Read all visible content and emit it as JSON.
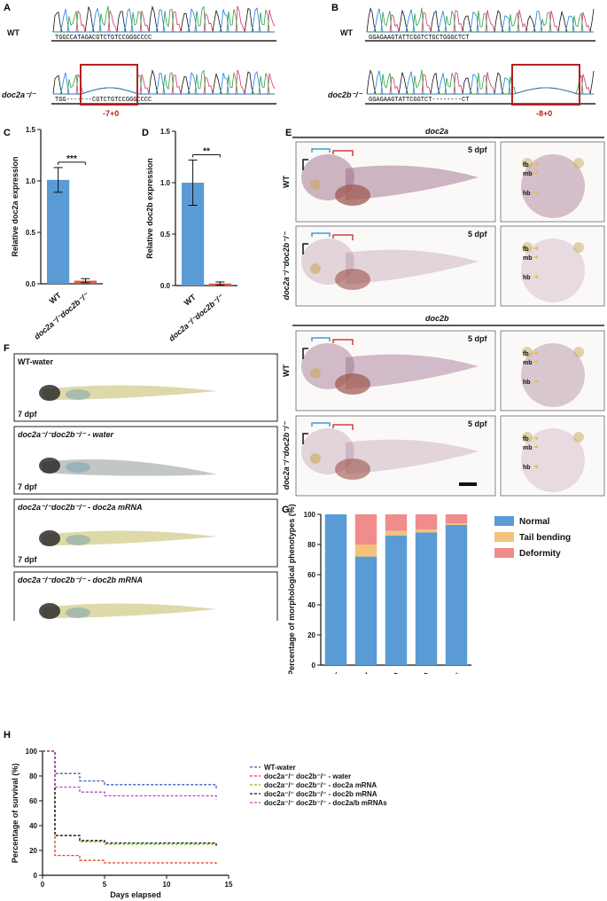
{
  "colors": {
    "bar_blue": "#5b9bd5",
    "bar_red": "#e05a3b",
    "tail": "#f4c27a",
    "deform": "#f08c8c",
    "dark_red": "#b22222"
  },
  "A": {
    "label": "A",
    "wt": "WT",
    "mut": "doc2a⁻/⁻",
    "wt_seq": "TGGCCATAGACGTCTGTCCGGGCCCC",
    "mut_seq": "TGG-------CGTCTGTCCGGGCCCC",
    "indel": "-7+0"
  },
  "B": {
    "label": "B",
    "wt": "WT",
    "mut": "doc2b⁻/⁻",
    "wt_seq": "GGAGAAGTATTCGGTCTGCTGGGCTCT",
    "mut_seq": "GGAGAAGTATTCGGTCT--------CT",
    "indel": "-8+0"
  },
  "C": {
    "label": "C",
    "sig": "***"
  },
  "D": {
    "label": "D",
    "sig": "**"
  },
  "E": {
    "label": "E",
    "gene1": "doc2a",
    "gene2": "doc2b",
    "age": "5 dpf",
    "wt": "WT",
    "mut": "doc2a⁻/⁻doc2b⁻/⁻",
    "fb": "fb",
    "mb": "mb",
    "hb": "hb"
  },
  "F": {
    "label": "F",
    "age": "7 dpf",
    "rows": [
      "WT-water",
      "doc2a⁻/⁻doc2b⁻/⁻ - water",
      "doc2a⁻/⁻doc2b⁻/⁻ - doc2a mRNA",
      "doc2a⁻/⁻doc2b⁻/⁻ - doc2b mRNA",
      "doc2a⁻/⁻doc2b⁻/⁻ - doc2a/b mRNA"
    ]
  },
  "G": {
    "label": "G"
  },
  "H": {
    "label": "H"
  },
  "chart_data": [
    {
      "panel": "C",
      "type": "bar",
      "categories": [
        "WT",
        "doc2a⁻/⁻doc2b⁻/⁻"
      ],
      "values": [
        1.01,
        0.03
      ],
      "errors": [
        0.12,
        0.02
      ],
      "ylabel": "Relative doc2a expression",
      "ylim": [
        0,
        1.5
      ],
      "yticks": [
        "0.0",
        "0.5",
        "1.0",
        "1.5"
      ]
    },
    {
      "panel": "D",
      "type": "bar",
      "categories": [
        "WT",
        "doc2a⁻/⁻doc2b⁻/⁻"
      ],
      "values": [
        1.0,
        0.02
      ],
      "errors": [
        0.22,
        0.015
      ],
      "ylabel": "Relative doc2b expression",
      "ylim": [
        0,
        1.5
      ],
      "yticks": [
        "0.0",
        "0.5",
        "1.0",
        "1.5"
      ]
    },
    {
      "panel": "G",
      "type": "bar",
      "stacked": true,
      "ylabel": "Percentage of morphological phenotypes (%)",
      "ylim": [
        0,
        100
      ],
      "yticks": [
        "0",
        "20",
        "40",
        "60",
        "80",
        "100"
      ],
      "categories": [
        "WT-water",
        "doc2a⁻/⁻ doc2b⁻/⁻ - water",
        "doc2a⁻/⁻ doc2b⁻/⁻ - doc2a mRNA",
        "doc2a⁻/⁻ doc2b⁻/⁻ - doc2b mRNA",
        "doc2a⁻/⁻ doc2b⁻/⁻ - doc2a/b mRNAs"
      ],
      "series": [
        {
          "name": "Normal",
          "values": [
            100,
            72,
            86,
            88,
            93
          ]
        },
        {
          "name": "Tail bending",
          "values": [
            0,
            8,
            3,
            2,
            1
          ]
        },
        {
          "name": "Deformity",
          "values": [
            0,
            20,
            11,
            10,
            6
          ]
        }
      ]
    },
    {
      "panel": "H",
      "type": "line",
      "xlabel": "Days elapsed",
      "ylabel": "Percentage of survival (%)",
      "xlim": [
        0,
        15
      ],
      "ylim": [
        0,
        100
      ],
      "xticks": [
        "0",
        "5",
        "10",
        "15"
      ],
      "yticks": [
        "0",
        "20",
        "40",
        "60",
        "80",
        "100"
      ],
      "series": [
        {
          "name": "WT-water",
          "color": "#3b5fc0",
          "x": [
            0,
            1,
            3,
            5,
            14
          ],
          "y": [
            100,
            82,
            76,
            73,
            70
          ]
        },
        {
          "name": "doc2a⁻/⁻ doc2b⁻/⁻ - water",
          "color": "#e04020",
          "x": [
            0,
            1,
            3,
            5,
            14
          ],
          "y": [
            100,
            16,
            12,
            10,
            8
          ]
        },
        {
          "name": "doc2a⁻/⁻ doc2b⁻/⁻ - doc2a mRNA",
          "color": "#78c020",
          "x": [
            0,
            1,
            3,
            5,
            14
          ],
          "y": [
            100,
            32,
            27,
            25,
            22
          ]
        },
        {
          "name": "doc2a⁻/⁻ doc2b⁻/⁻ - doc2b mRNA",
          "color": "#111111",
          "x": [
            0,
            1,
            3,
            5,
            14
          ],
          "y": [
            100,
            32,
            28,
            26,
            24
          ]
        },
        {
          "name": "doc2a⁻/⁻ doc2b⁻/⁻ - doc2a/b mRNAs",
          "color": "#c040c0",
          "x": [
            0,
            1,
            3,
            5,
            14
          ],
          "y": [
            100,
            71,
            67,
            64,
            61
          ]
        }
      ]
    }
  ]
}
